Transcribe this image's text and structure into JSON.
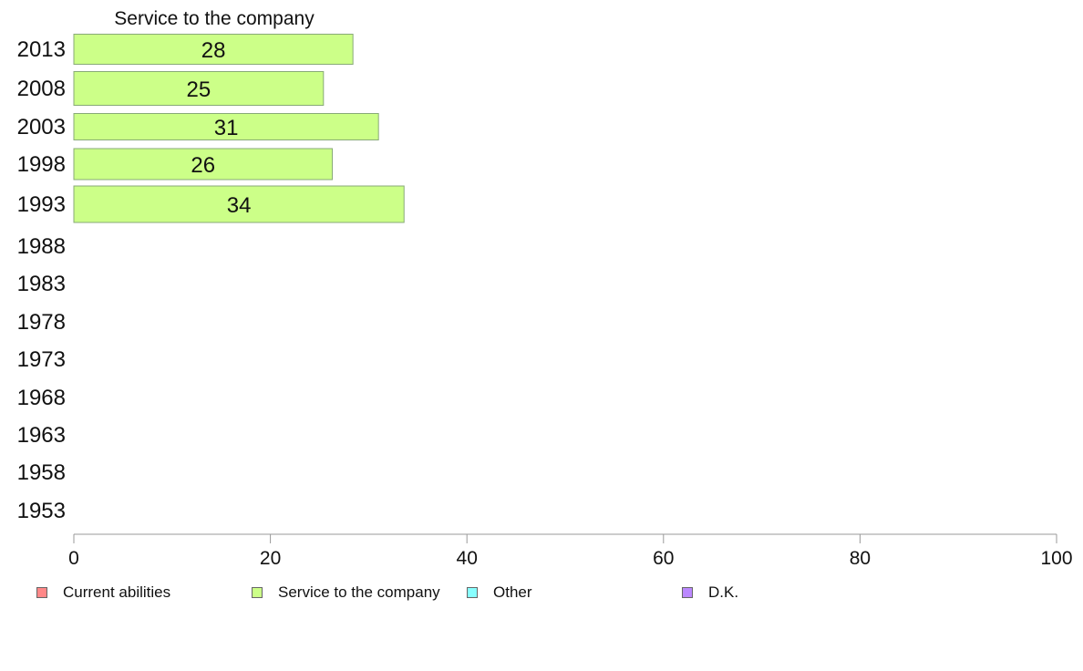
{
  "chart_data": {
    "type": "bar",
    "orientation": "horizontal",
    "title": "Service to the company",
    "categories": [
      "2013",
      "2008",
      "2003",
      "1998",
      "1993",
      "1988",
      "1983",
      "1978",
      "1973",
      "1968",
      "1963",
      "1958",
      "1953"
    ],
    "series": [
      {
        "name": "Service to the company",
        "color": "#ccff88",
        "values": [
          28.4,
          25.4,
          31,
          26.3,
          33.6,
          null,
          null,
          null,
          null,
          null,
          null,
          null,
          null
        ],
        "labels": [
          "28",
          "25",
          "31",
          "26",
          "34",
          "",
          "",
          "",
          "",
          "",
          "",
          "",
          ""
        ]
      }
    ],
    "xlim": [
      0,
      100
    ],
    "xticks": [
      "0",
      "20",
      "40",
      "60",
      "80",
      "100"
    ],
    "grid": false,
    "legend": {
      "placement": "bottom",
      "entries": [
        {
          "label": "Current abilities",
          "color": "#ff8888"
        },
        {
          "label": "Service to the company",
          "color": "#ccff88"
        },
        {
          "label": "Other",
          "color": "#88ffff"
        },
        {
          "label": "D.K.",
          "color": "#bb88ff"
        }
      ]
    }
  }
}
